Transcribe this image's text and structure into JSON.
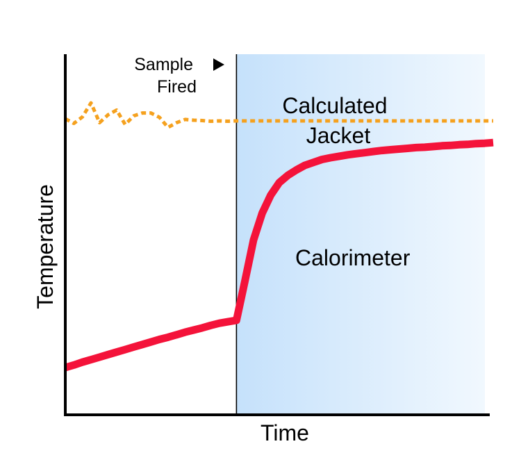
{
  "chart_data": {
    "type": "line",
    "xlabel": "Time",
    "ylabel": "Temperature",
    "annotation": {
      "line1": "Sample",
      "line2": "Fired",
      "marker": "right-triangle-icon"
    },
    "x": [
      0,
      2,
      4,
      6,
      8,
      10,
      12,
      14,
      16,
      18,
      20,
      22,
      24,
      26,
      28,
      30,
      32,
      34,
      36,
      38,
      40,
      42,
      44,
      46,
      48,
      50,
      52,
      54,
      56,
      58,
      60,
      62,
      64,
      66,
      68,
      70,
      72,
      74,
      76,
      78,
      80,
      82,
      84,
      86,
      88,
      90,
      92,
      94,
      96,
      98,
      100
    ],
    "series": [
      {
        "name": "Calculated\nJacket",
        "style": "dotted",
        "color": "#f5a11e",
        "values": [
          82.1,
          80.8,
          82.6,
          86.5,
          81.0,
          83.2,
          84.5,
          80.5,
          82.9,
          83.7,
          83.7,
          82.5,
          79.7,
          81.0,
          81.9,
          81.7,
          81.6,
          81.4,
          81.5,
          81.4,
          81.5,
          81.5,
          81.5,
          81.5,
          81.5,
          81.5,
          81.5,
          81.5,
          81.5,
          81.5,
          81.5,
          81.5,
          81.5,
          81.5,
          81.5,
          81.5,
          81.5,
          81.5,
          81.5,
          81.5,
          81.5,
          81.5,
          81.5,
          81.5,
          81.5,
          81.5,
          81.5,
          81.5,
          81.5,
          81.5,
          81.5
        ]
      },
      {
        "name": "Calorimeter",
        "style": "solid",
        "color": "#f4133a",
        "values": [
          13.1,
          13.8,
          14.6,
          15.3,
          16.0,
          16.7,
          17.4,
          18.1,
          18.8,
          19.5,
          20.2,
          20.9,
          21.5,
          22.2,
          22.9,
          23.5,
          24.1,
          24.8,
          25.4,
          25.8,
          26.2,
          37.2,
          48.5,
          55.9,
          60.9,
          64.4,
          66.4,
          67.9,
          69.2,
          70.0,
          70.8,
          71.3,
          71.7,
          72.1,
          72.4,
          72.7,
          73.0,
          73.3,
          73.5,
          73.7,
          73.9,
          74.1,
          74.2,
          74.4,
          74.6,
          74.7,
          74.9,
          75.0,
          75.2,
          75.3,
          75.5
        ]
      }
    ],
    "event_x": 40,
    "shaded_region": {
      "from": 40,
      "to": 100,
      "color_start": "#c5e1fb",
      "color_end": "#f1f8fe"
    },
    "xlim": [
      0,
      100
    ],
    "ylim": [
      0,
      100
    ],
    "ticks": false,
    "grid": false,
    "legend": "none"
  }
}
